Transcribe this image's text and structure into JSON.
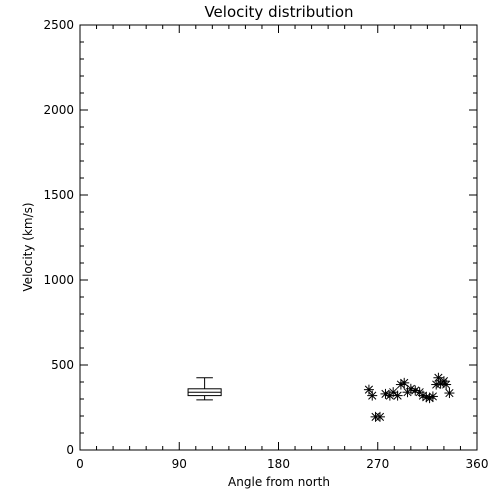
{
  "chart_data": {
    "type": "scatter",
    "title": "Velocity distribution",
    "xlabel": "Angle from north",
    "ylabel": "Velocity (km/s)",
    "xlim": [
      0,
      360
    ],
    "ylim": [
      0,
      2500
    ],
    "xticks": [
      0,
      90,
      180,
      270,
      360
    ],
    "xtick_labels": [
      "0",
      "90",
      "180",
      "270",
      "360"
    ],
    "yticks": [
      0,
      500,
      1000,
      1500,
      2000,
      2500
    ],
    "ytick_labels": [
      "0",
      "500",
      "1000",
      "1500",
      "2000",
      "2500"
    ],
    "grid": false,
    "marker": "asterisk",
    "color": "#000000",
    "boxplot": {
      "x": 113,
      "min": 295,
      "q1": 320,
      "median": 340,
      "q3": 360,
      "max": 425,
      "width": 30
    },
    "points": [
      {
        "x": 262,
        "y": 355
      },
      {
        "x": 265,
        "y": 320
      },
      {
        "x": 268,
        "y": 195
      },
      {
        "x": 272,
        "y": 195
      },
      {
        "x": 277,
        "y": 330
      },
      {
        "x": 281,
        "y": 320
      },
      {
        "x": 284,
        "y": 340
      },
      {
        "x": 288,
        "y": 320
      },
      {
        "x": 291,
        "y": 385
      },
      {
        "x": 294,
        "y": 395
      },
      {
        "x": 297,
        "y": 340
      },
      {
        "x": 300,
        "y": 360
      },
      {
        "x": 304,
        "y": 350
      },
      {
        "x": 308,
        "y": 340
      },
      {
        "x": 311,
        "y": 320
      },
      {
        "x": 314,
        "y": 310
      },
      {
        "x": 317,
        "y": 305
      },
      {
        "x": 320,
        "y": 315
      },
      {
        "x": 323,
        "y": 385
      },
      {
        "x": 325,
        "y": 425
      },
      {
        "x": 327,
        "y": 390
      },
      {
        "x": 330,
        "y": 405
      },
      {
        "x": 332,
        "y": 385
      },
      {
        "x": 335,
        "y": 335
      }
    ]
  }
}
